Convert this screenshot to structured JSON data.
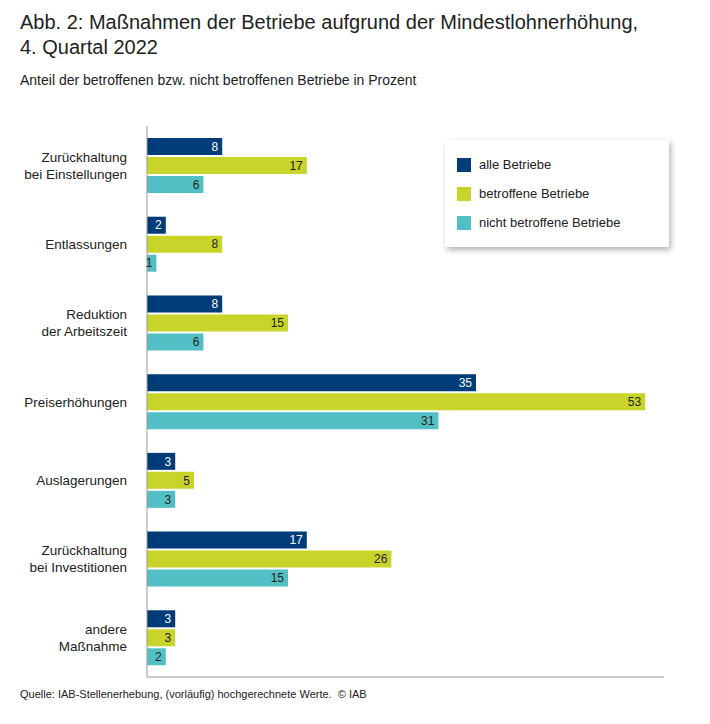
{
  "chart_data": {
    "type": "bar",
    "orientation": "horizontal",
    "title": "Abb. 2: Maßnahmen der Betriebe aufgrund der Mindestlohnerhöhung, 4. Quartal 2022",
    "subtitle": "Anteil der betroffenen bzw. nicht betroffenen Betriebe in Prozent",
    "annotations": [
      "Quelle: IAB-Stellenerhebung, (vorläufig) hochgerechnete Werte.  © IAB"
    ],
    "categories": [
      "Zurückhaltung bei Einstellungen",
      "Entlassungen",
      "Reduktion der Arbeitszeit",
      "Preiserhöhungen",
      "Auslagerungen",
      "Zurückhaltung bei Investitionen",
      "andere Maßnahme"
    ],
    "series": [
      {
        "name": "alle Betriebe",
        "color": "#003c78",
        "values": [
          8,
          2,
          8,
          35,
          3,
          17,
          3
        ]
      },
      {
        "name": "betroffene Betriebe",
        "color": "#c8d42a",
        "values": [
          17,
          8,
          15,
          53,
          5,
          26,
          3
        ]
      },
      {
        "name": "nicht betroffene Betriebe",
        "color": "#52bfc4",
        "values": [
          6,
          1,
          6,
          31,
          3,
          15,
          2
        ]
      }
    ],
    "xlim": [
      0,
      55
    ],
    "xticks": [],
    "data_labels": true,
    "tick_labels": "y",
    "legend": "top-right",
    "grid": false
  }
}
